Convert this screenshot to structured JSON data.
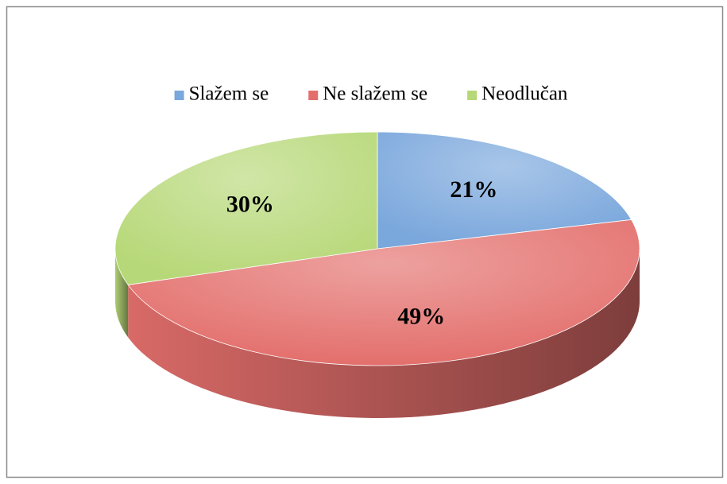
{
  "chart_data": {
    "type": "pie",
    "categories": [
      "Slažem se",
      "Ne slažem se",
      "Neodlučan"
    ],
    "values": [
      21,
      49,
      30
    ],
    "value_labels": [
      "21%",
      "49%",
      "30%"
    ],
    "colors": [
      "#7aa7dc",
      "#e36f6c",
      "#b7d878"
    ],
    "legend": "top"
  }
}
